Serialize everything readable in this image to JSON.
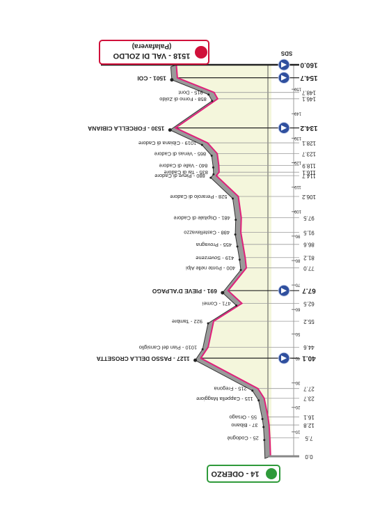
{
  "chart_data": {
    "type": "line",
    "x": [
      0,
      7.5,
      12.8,
      16.1,
      23.7,
      27.7,
      40.1,
      44.6,
      55.2,
      62.5,
      67.7,
      77.0,
      81.2,
      86.6,
      91.5,
      97.5,
      106.2,
      114.7,
      116.1,
      118.9,
      123.7,
      128.1,
      134.2,
      146.1,
      148.7,
      154.7,
      160.0
    ],
    "x_labels": [
      "0.0",
      "7.5",
      "12.8",
      "16.1",
      "23.7",
      "27.7",
      "40.1",
      "44.6",
      "55.2",
      "62.5",
      "67.7",
      "77.0",
      "81.2",
      "86.6",
      "91.5",
      "97.5",
      "106.2",
      "114.7",
      "116.1",
      "118.9",
      "123.7",
      "128.1",
      "134.2",
      "146.1",
      "148.7",
      "154.7",
      "160.0"
    ],
    "values": [
      14,
      25,
      37,
      55,
      115,
      215,
      1127,
      1010,
      922,
      471,
      691,
      400,
      419,
      455,
      488,
      481,
      528,
      880,
      835,
      840,
      865,
      1019,
      1530,
      858,
      915,
      1501,
      1518
    ],
    "labels": [
      "14 - ODERZO",
      "25 - Codognè",
      "37 - Bibano",
      "55 - Orsago",
      "115 - Cappella Maggiore",
      "215 - Fregona",
      "1127 - PASSO DELLA CROSETTA",
      "1010 - Pian del Cansiglio",
      "922 - Tambre",
      "471 - Comei",
      "691 - PIEVE D'ALPAGO",
      "400 - Ponte nelle Alpi",
      "419 - Soverzene",
      "455 - Provagna",
      "488 - Castellavazzo",
      "481 - Ospitale di Cadore",
      "528 - Perarolo di Cadore",
      "880 - Pieve di Cadore",
      "835 - Tai di Cadore",
      "840 - Valle di Cadore",
      "865 - Venas di Cadore",
      "1019 - Cibiana di Cadore",
      "1530 - FORCELLA CIBIANA",
      "858 - Forno di Zoldo",
      "915 - Dont",
      "1501 - COI",
      "1518 - VAL DI ZOLDO"
    ],
    "finish_subtitle": "(Palafavera)",
    "top_note": "SDS",
    "highlighted": [
      6,
      10,
      22,
      25
    ],
    "icons": [
      6,
      10,
      22,
      25,
      26
    ],
    "xlim": [
      0,
      160
    ],
    "ylim": [
      0,
      1700
    ],
    "xticks": [
      10,
      20,
      30,
      40,
      50,
      60,
      70,
      80,
      90,
      100,
      110,
      120,
      130,
      140,
      150
    ],
    "line_color": "#e0207a",
    "fill_color": "#f4f6dc",
    "ribbon_color": "#9a9a9a",
    "icon_color": "#2f4f9e",
    "start_color": "#2e9a3a",
    "finish_color": "#d0103a"
  }
}
